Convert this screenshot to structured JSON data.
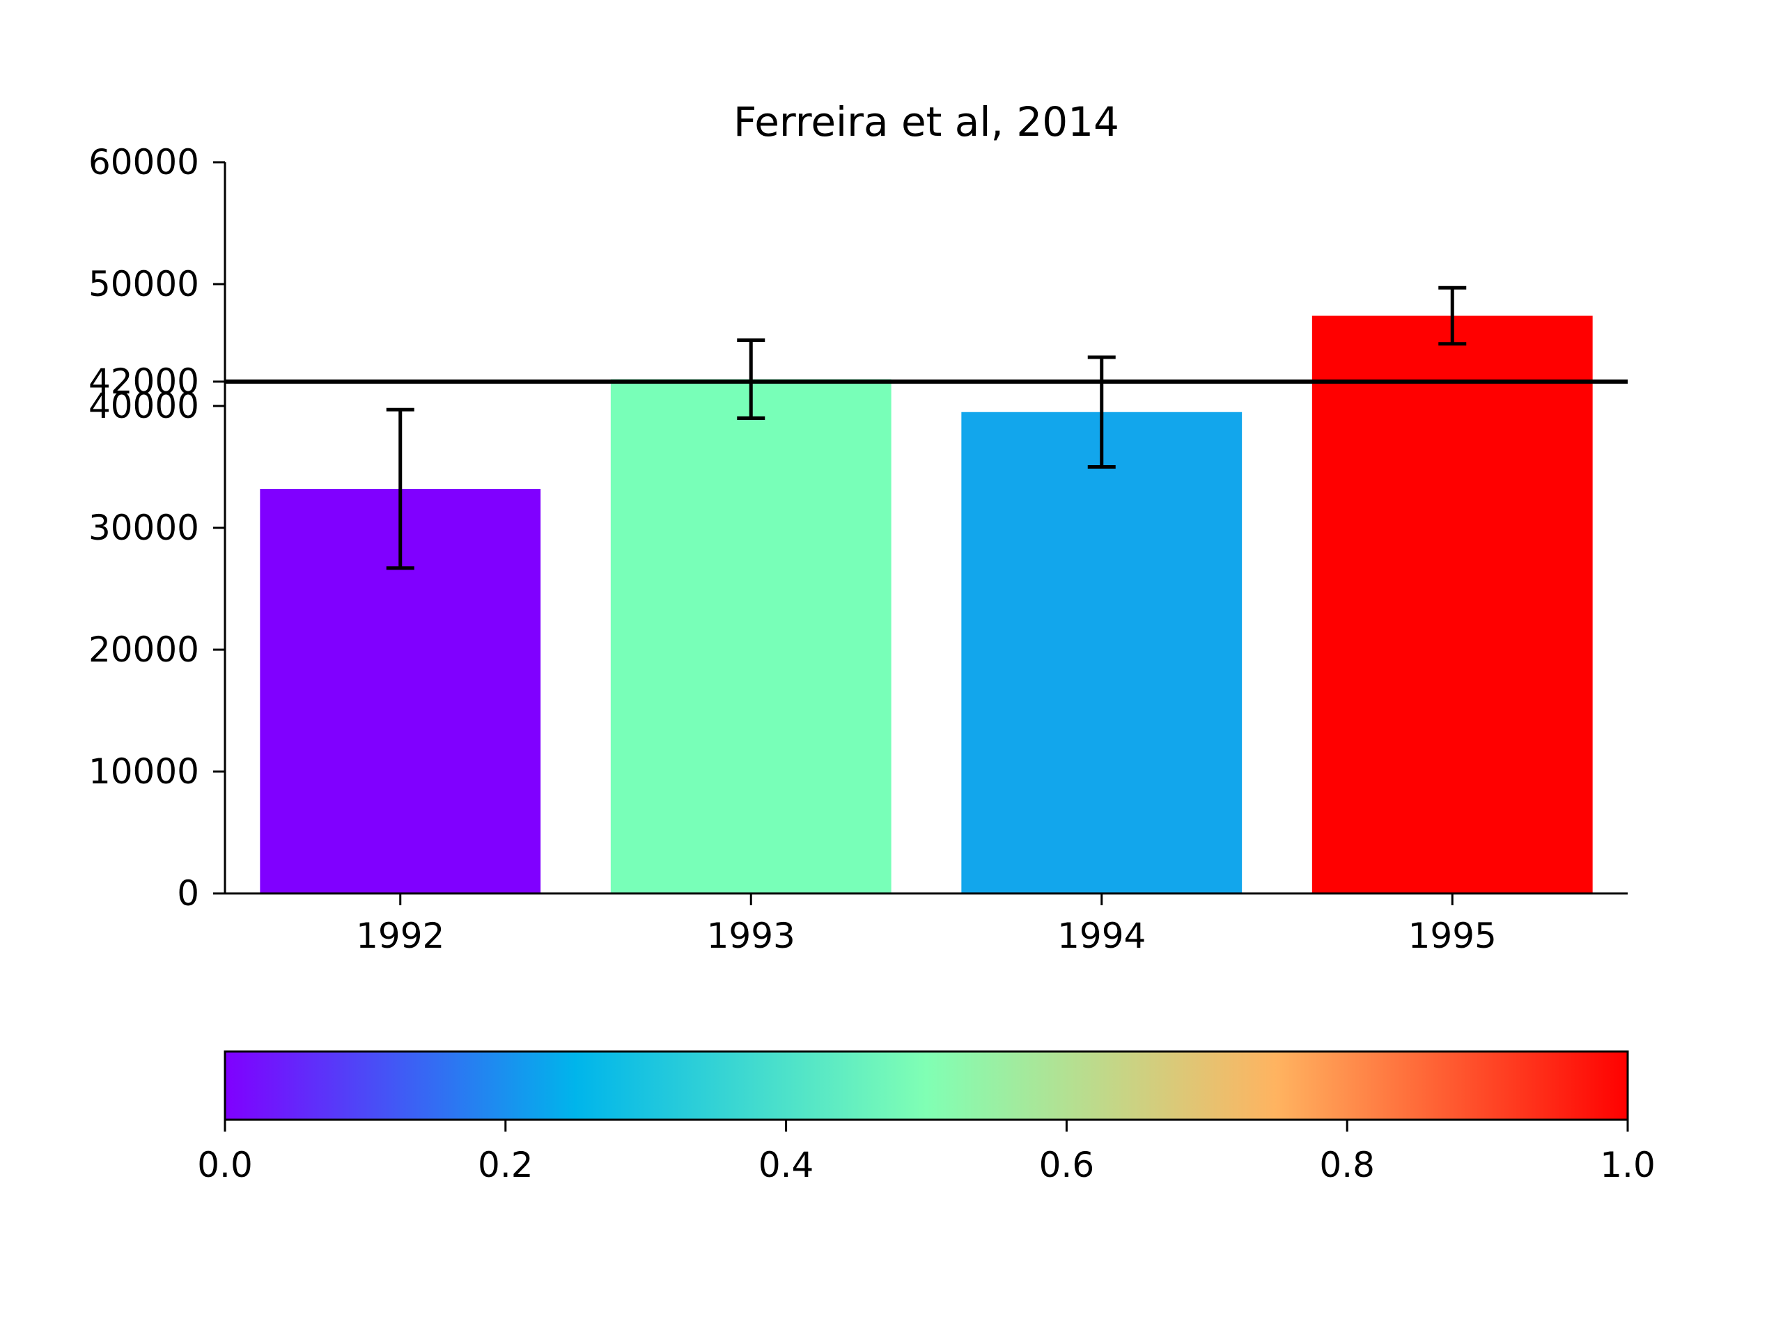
{
  "chart_data": {
    "type": "bar",
    "title": "Ferreira et al, 2014",
    "xlabel": "",
    "ylabel": "",
    "categories": [
      "1992",
      "1993",
      "1994",
      "1995"
    ],
    "values": [
      33200,
      42200,
      39500,
      47400
    ],
    "errors": [
      6500,
      3200,
      4500,
      2300
    ],
    "bar_colors": [
      "#8000ff",
      "#78ffb8",
      "#12a6ec",
      "#ff0000"
    ],
    "ylim": [
      0,
      60000
    ],
    "yticks": [
      0,
      10000,
      20000,
      30000,
      40000,
      50000,
      60000
    ],
    "yticklabels": [
      "0",
      "10000",
      "20000",
      "30000",
      "40000",
      "50000",
      "60000"
    ],
    "reference_line": {
      "value": 42000,
      "label": "42000",
      "color": "#000000"
    },
    "colorbar": {
      "colormap": "rainbow",
      "range": [
        0.0,
        1.0
      ],
      "ticks": [
        0.0,
        0.2,
        0.4,
        0.6,
        0.8,
        1.0
      ],
      "ticklabels": [
        "0.0",
        "0.2",
        "0.4",
        "0.6",
        "0.8",
        "1.0"
      ],
      "stops": [
        "#8000ff",
        "#00b5eb",
        "#80ffb4",
        "#ffb360",
        "#ff0000"
      ]
    },
    "grid": false,
    "legend": "none"
  }
}
